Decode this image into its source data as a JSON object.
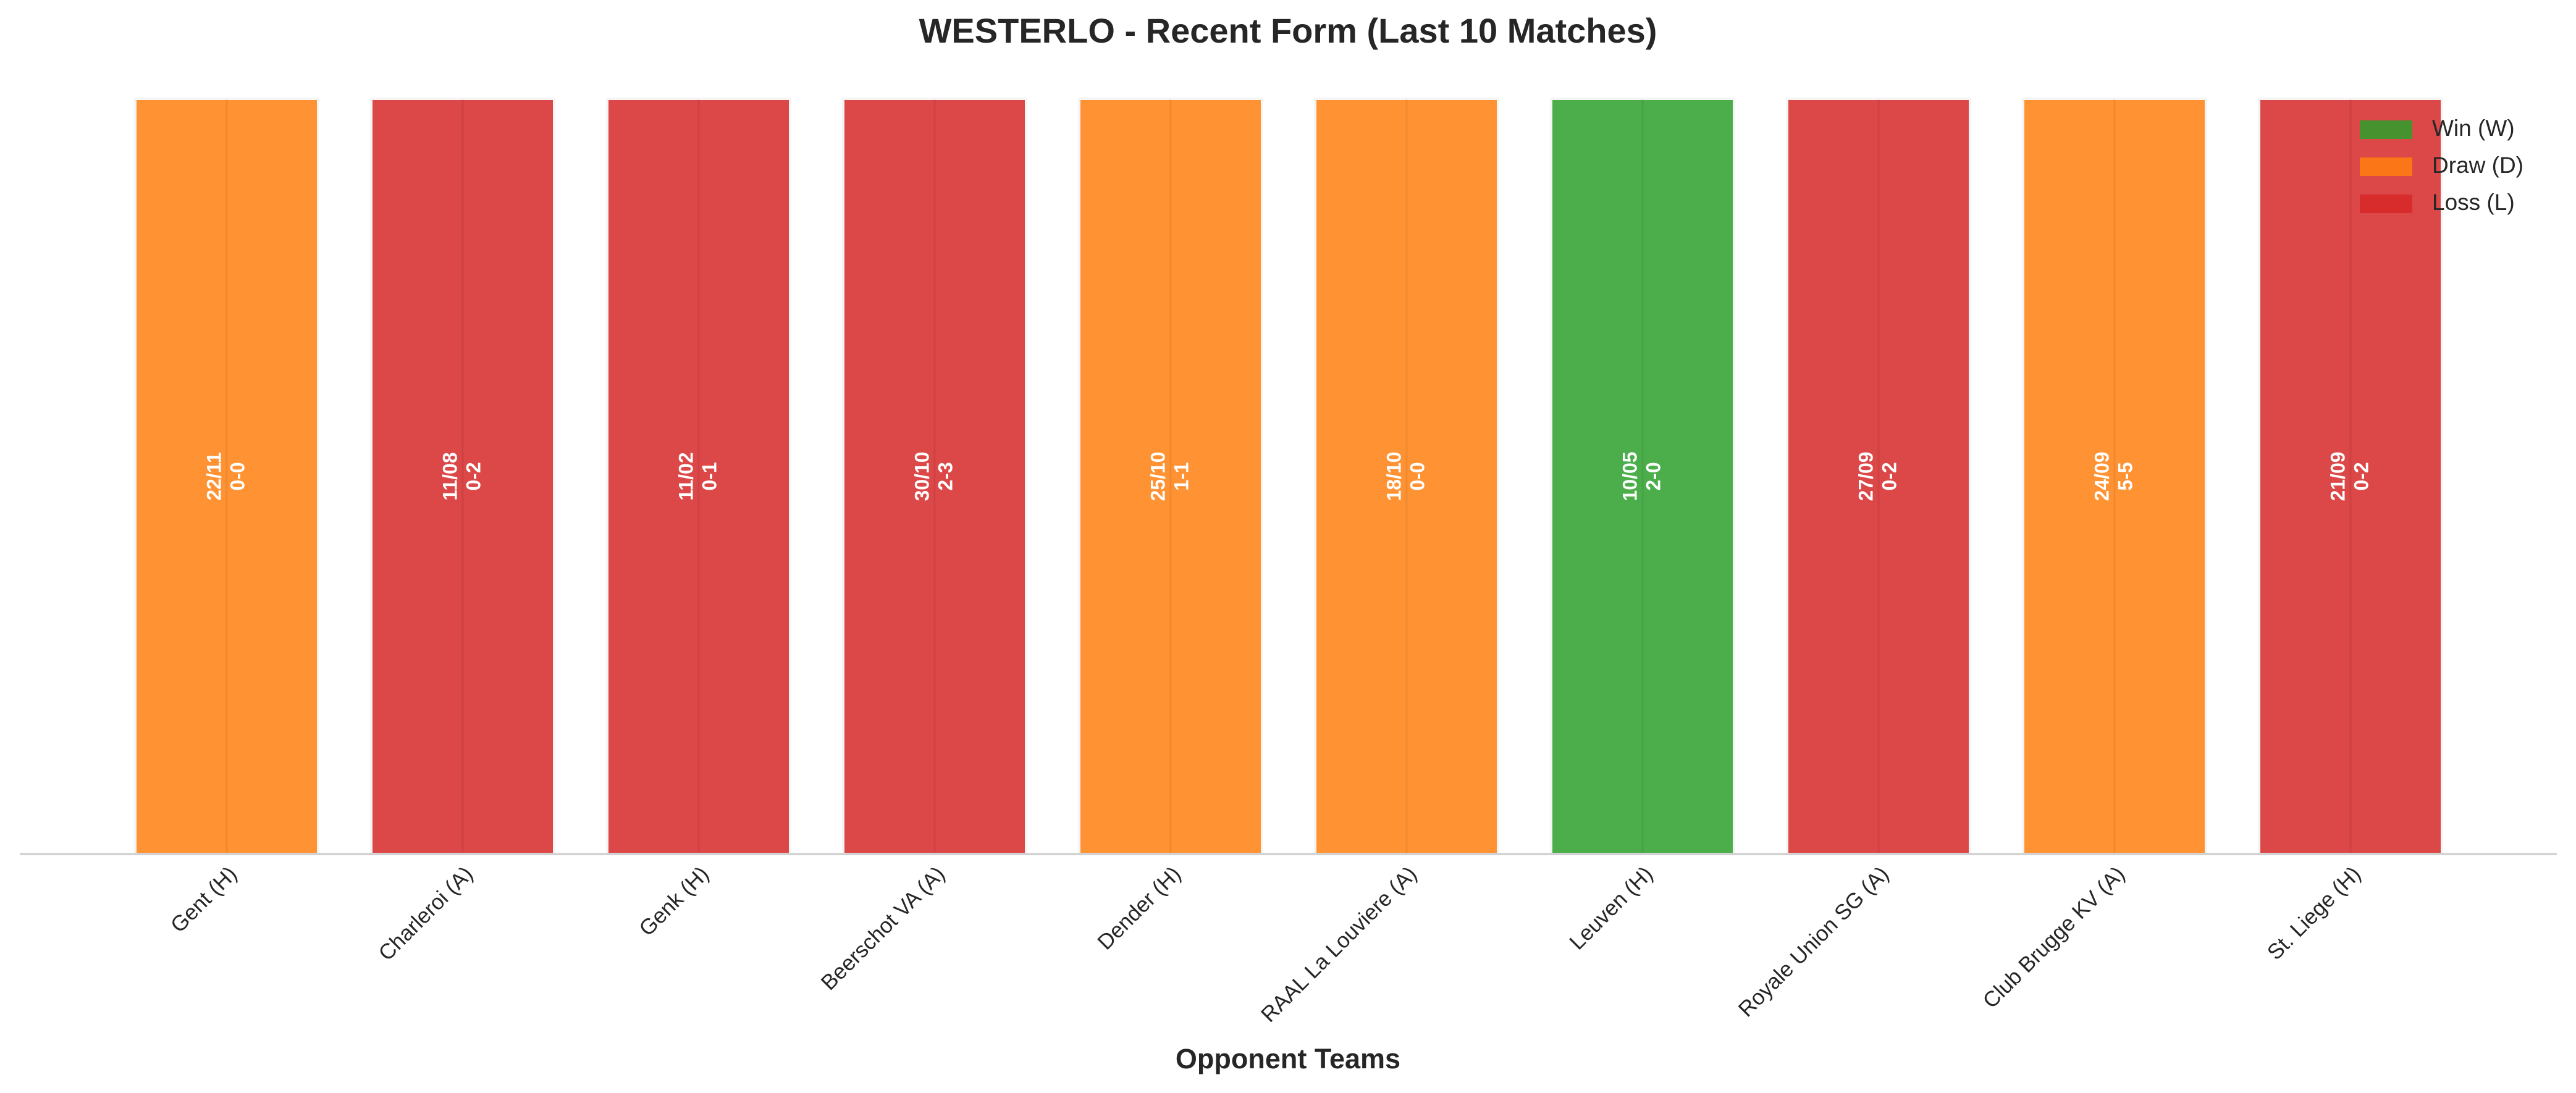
{
  "chart_data": {
    "type": "bar",
    "title": "WESTERLO - Recent Form (Last 10 Matches)",
    "xlabel": "Opponent Teams",
    "categories": [
      "Gent (H)",
      "Charleroi (A)",
      "Genk (H)",
      "Beerschot VA (A)",
      "Dender (H)",
      "RAAL La Louviere (A)",
      "Leuven (H)",
      "Royale Union SG (A)",
      "Club Brugge KV (A)",
      "St. Liege (H)"
    ],
    "values": [
      1,
      1,
      1,
      1,
      1,
      1,
      1,
      1,
      1,
      1
    ],
    "dates": [
      "22/11",
      "11/08",
      "11/02",
      "30/10",
      "25/10",
      "18/10",
      "10/05",
      "27/09",
      "24/09",
      "21/09"
    ],
    "scores": [
      "0-0",
      "0-2",
      "0-1",
      "2-3",
      "1-1",
      "0-0",
      "2-0",
      "0-2",
      "5-5",
      "0-2"
    ],
    "colors": [
      "#ff7f0e",
      "#d62728",
      "#d62728",
      "#d62728",
      "#ff7f0e",
      "#ff7f0e",
      "#2ca02c",
      "#d62728",
      "#ff7f0e",
      "#d62728"
    ],
    "ylim": [
      0,
      1
    ],
    "legend": {
      "position": "upper right",
      "entries": [
        {
          "name": "Win (W)",
          "color": "#2ca02c"
        },
        {
          "name": "Draw (D)",
          "color": "#ff7f0e"
        },
        {
          "name": "Loss (L)",
          "color": "#d62728"
        }
      ]
    }
  }
}
